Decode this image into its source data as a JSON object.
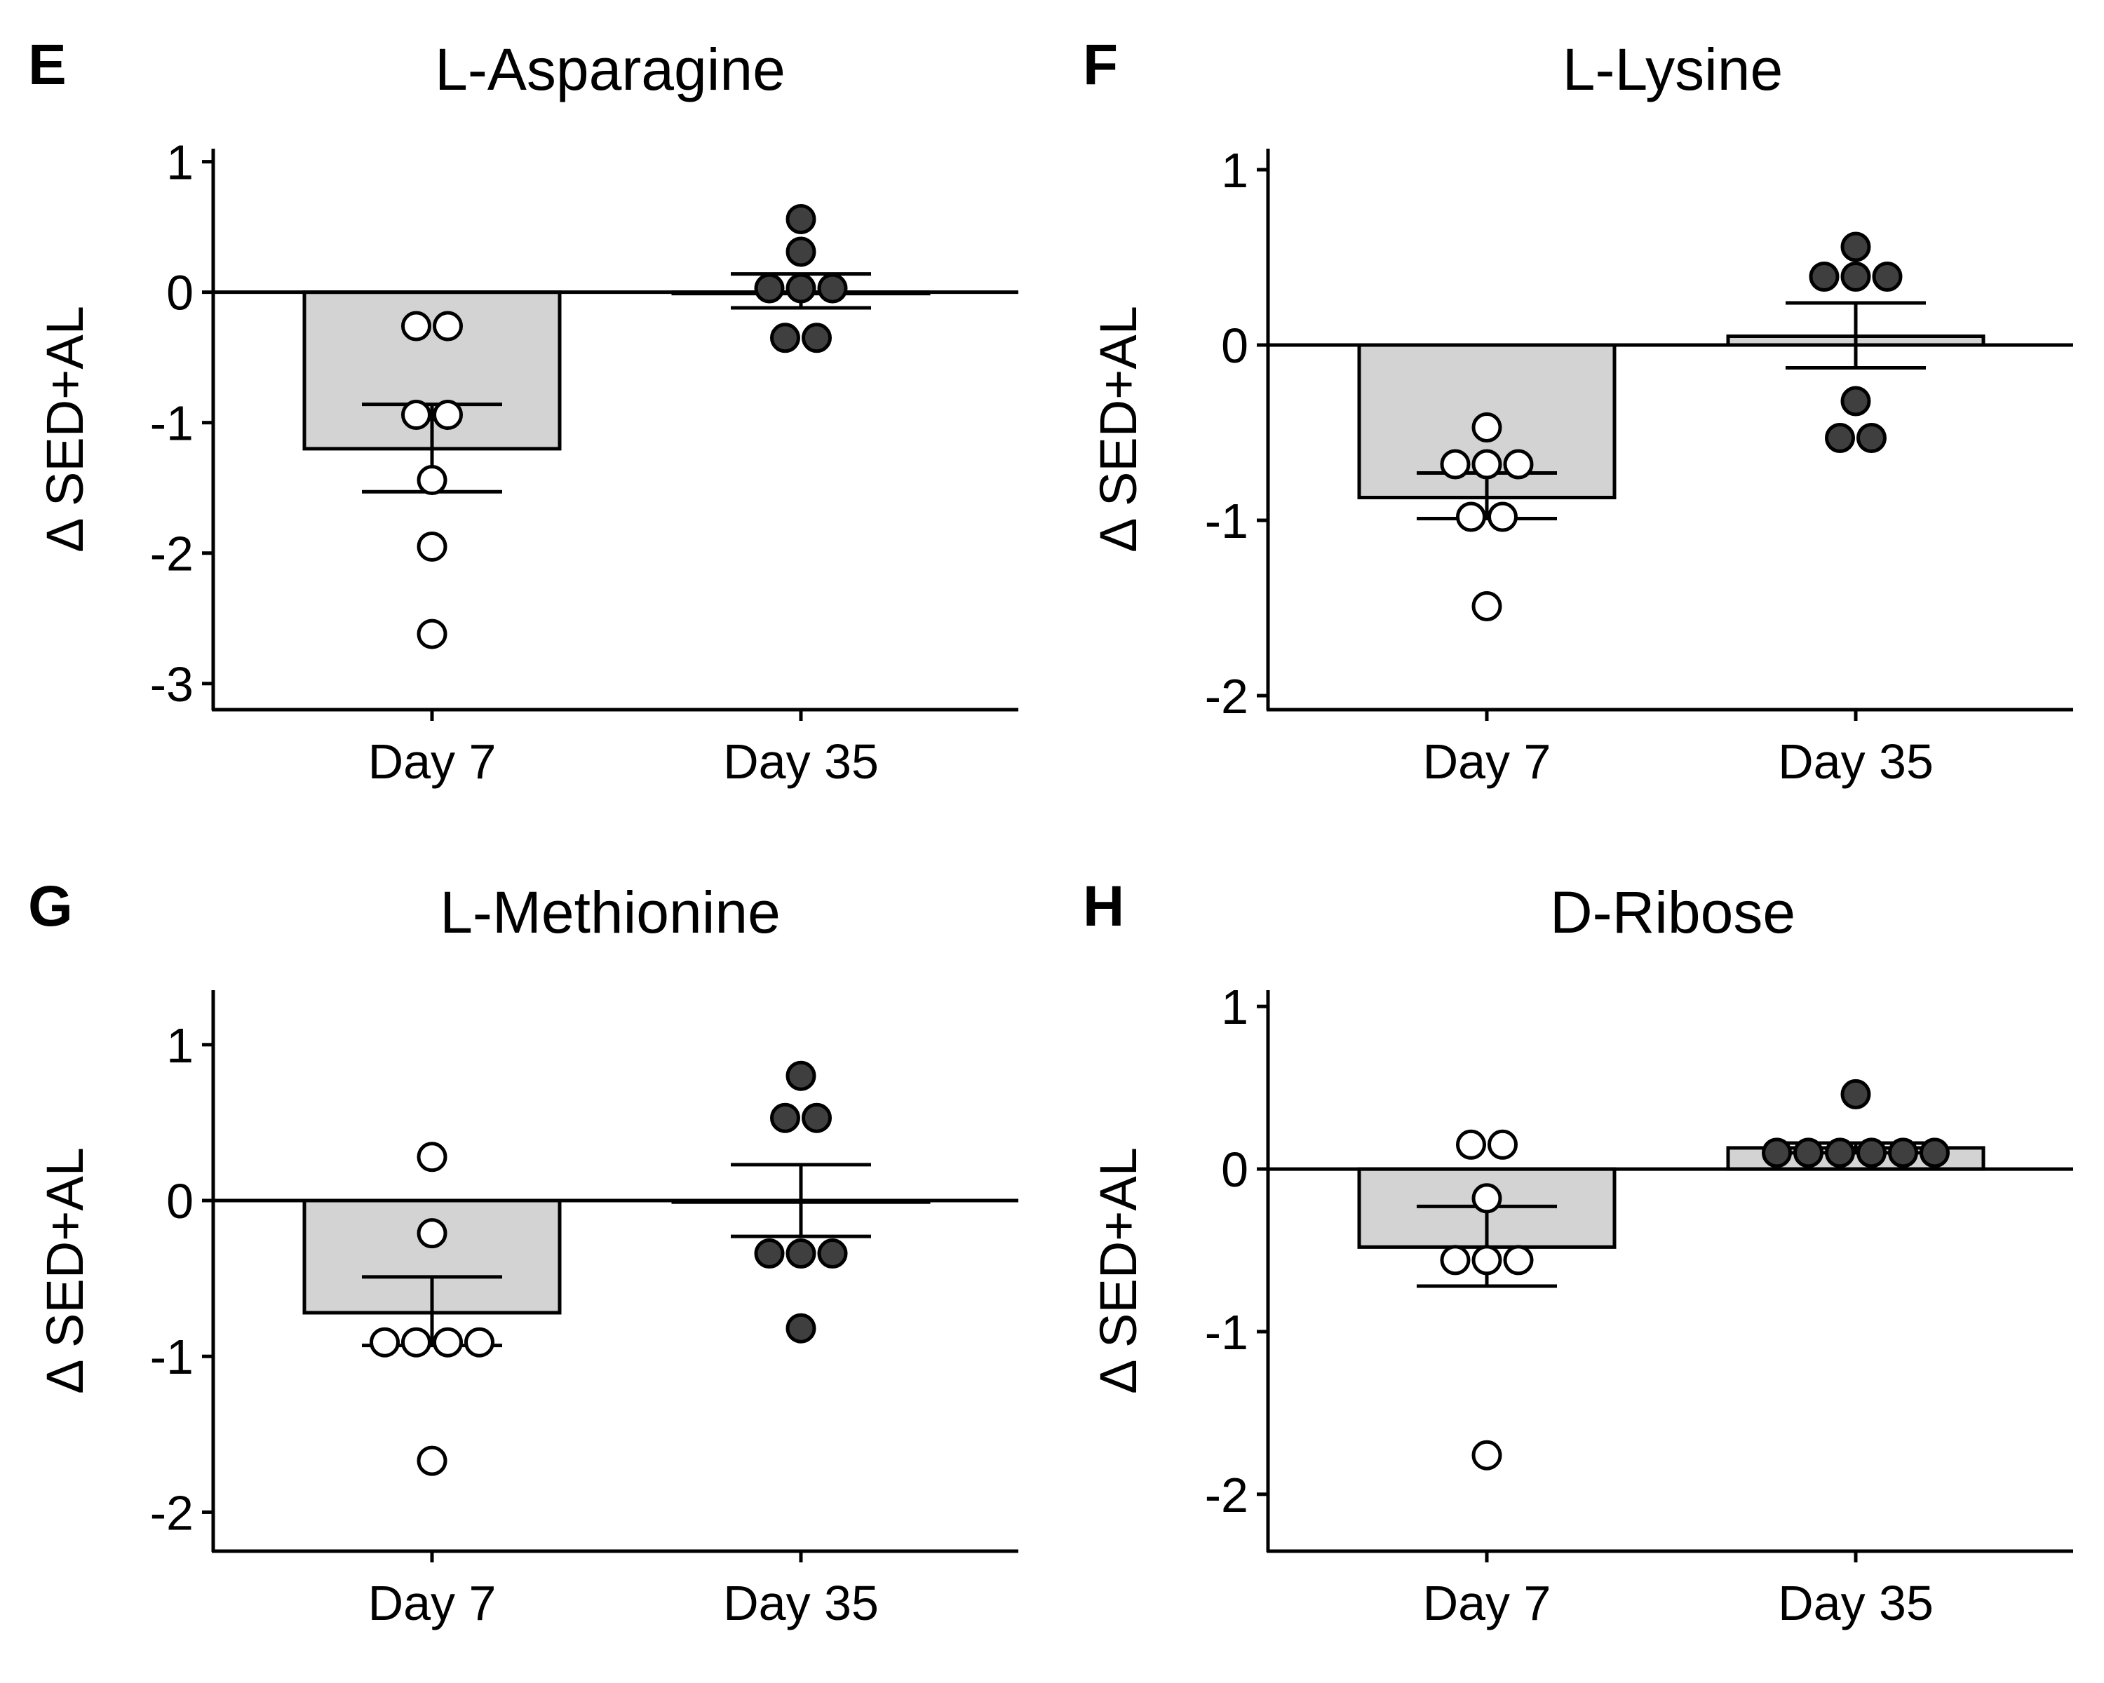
{
  "colors": {
    "bar_fill": "#d3d3d3",
    "day35_point": "#3f3f3f",
    "day7_point": "#ffffff",
    "stroke": "#000000"
  },
  "chart_data": [
    {
      "panel": "E",
      "type": "bar",
      "title": "L-Asparagine",
      "ylabel": "Δ SED+AL",
      "xlabel": "",
      "categories": [
        "Day 7",
        "Day 35"
      ],
      "ylim": [
        -3.2,
        1.1
      ],
      "yticks": [
        1,
        0,
        -1,
        -2,
        -3
      ],
      "bars": [
        {
          "category": "Day 7",
          "mean": -1.2,
          "sem_low": -1.53,
          "sem_high": -0.86,
          "points": [
            -0.26,
            -0.26,
            -0.94,
            -0.94,
            -1.44,
            -1.95,
            -2.62
          ]
        },
        {
          "category": "Day 35",
          "mean": 0.0,
          "sem_low": -0.12,
          "sem_high": 0.14,
          "points": [
            0.56,
            0.31,
            0.03,
            0.03,
            0.03,
            -0.35,
            -0.35
          ]
        }
      ]
    },
    {
      "panel": "F",
      "type": "bar",
      "title": "L-Lysine",
      "ylabel": "Δ SED+AL",
      "xlabel": "",
      "categories": [
        "Day 7",
        "Day 35"
      ],
      "ylim": [
        -2.08,
        1.12
      ],
      "yticks": [
        1,
        0,
        -1,
        -2
      ],
      "bars": [
        {
          "category": "Day 7",
          "mean": -0.87,
          "sem_low": -0.99,
          "sem_high": -0.73,
          "points": [
            -0.47,
            -0.68,
            -0.68,
            -0.68,
            -0.98,
            -0.98,
            -1.49
          ]
        },
        {
          "category": "Day 35",
          "mean": 0.05,
          "sem_low": -0.13,
          "sem_high": 0.24,
          "points": [
            0.56,
            0.39,
            0.39,
            0.39,
            -0.32,
            -0.53,
            -0.53
          ]
        }
      ]
    },
    {
      "panel": "G",
      "type": "bar",
      "title": "L-Methionine",
      "ylabel": "Δ SED+AL",
      "xlabel": "",
      "categories": [
        "Day 7",
        "Day 35"
      ],
      "ylim": [
        -2.25,
        1.35
      ],
      "yticks": [
        1,
        0,
        -1,
        -2
      ],
      "bars": [
        {
          "category": "Day 7",
          "mean": -0.72,
          "sem_low": -0.93,
          "sem_high": -0.49,
          "points": [
            0.28,
            -0.21,
            -0.91,
            -0.91,
            -0.91,
            -0.91,
            -1.67
          ]
        },
        {
          "category": "Day 35",
          "mean": -0.01,
          "sem_low": -0.23,
          "sem_high": 0.23,
          "points": [
            0.8,
            0.53,
            0.53,
            -0.34,
            -0.34,
            -0.34,
            -0.82
          ]
        }
      ]
    },
    {
      "panel": "H",
      "type": "bar",
      "title": "D-Ribose",
      "ylabel": "Δ SED+AL",
      "xlabel": "",
      "categories": [
        "Day 7",
        "Day 35"
      ],
      "ylim": [
        -2.35,
        1.1
      ],
      "yticks": [
        1,
        0,
        -1,
        -2
      ],
      "bars": [
        {
          "category": "Day 7",
          "mean": -0.48,
          "sem_low": -0.72,
          "sem_high": -0.23,
          "points": [
            0.15,
            0.15,
            -0.18,
            -0.56,
            -0.56,
            -0.56,
            -1.76
          ]
        },
        {
          "category": "Day 35",
          "mean": 0.13,
          "sem_low": 0.1,
          "sem_high": 0.16,
          "points": [
            0.46,
            0.1,
            0.1,
            0.1,
            0.1,
            0.1,
            0.1
          ]
        }
      ]
    }
  ]
}
